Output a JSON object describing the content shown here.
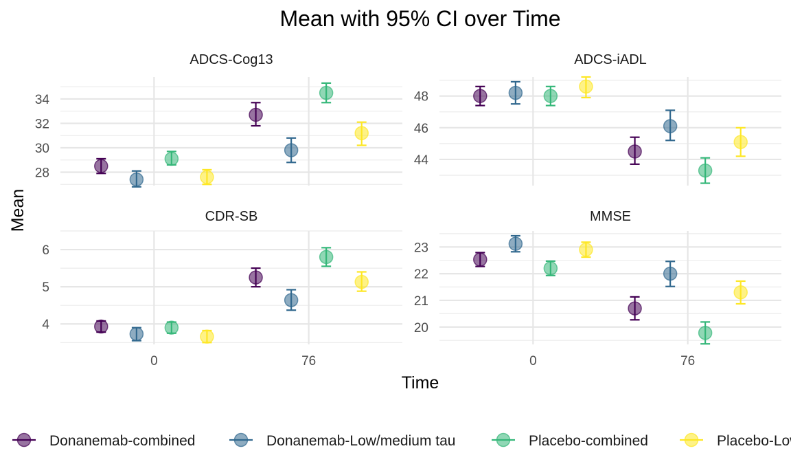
{
  "chart_data": {
    "type": "scatter",
    "title": "Mean with 95% CI over Time",
    "xlabel": "Time",
    "ylabel": "Mean",
    "x_ticks": [
      "0",
      "76"
    ],
    "x_tick_values": [
      0,
      76
    ],
    "xlim": [
      -46,
      122
    ],
    "legend_position": "bottom",
    "series": [
      {
        "name": "Donanemab-combined",
        "color": "#440154"
      },
      {
        "name": "Donanemab-Low/medium tau",
        "color": "#31688E"
      },
      {
        "name": "Placebo-combined",
        "color": "#35B779"
      },
      {
        "name": "Placebo-Low/medium tau",
        "color": "#FDE725"
      }
    ],
    "panels": [
      {
        "name": "ADCS-Cog13",
        "ylim": [
          26.9,
          35.8
        ],
        "y_ticks": [
          28,
          30,
          32,
          34
        ],
        "points": [
          {
            "series": 0,
            "x": -26,
            "y": 28.5,
            "lo": 27.9,
            "hi": 29.1
          },
          {
            "series": 1,
            "x": -8.6,
            "y": 27.4,
            "lo": 26.8,
            "hi": 28.1
          },
          {
            "series": 2,
            "x": 8.6,
            "y": 29.1,
            "lo": 28.6,
            "hi": 29.7
          },
          {
            "series": 3,
            "x": 26,
            "y": 27.6,
            "lo": 27.0,
            "hi": 28.2
          },
          {
            "series": 0,
            "x": 50,
            "y": 32.7,
            "lo": 31.8,
            "hi": 33.7
          },
          {
            "series": 1,
            "x": 67.4,
            "y": 29.8,
            "lo": 28.8,
            "hi": 30.8
          },
          {
            "series": 2,
            "x": 84.6,
            "y": 34.5,
            "lo": 33.7,
            "hi": 35.3
          },
          {
            "series": 3,
            "x": 102,
            "y": 31.2,
            "lo": 30.2,
            "hi": 32.1
          }
        ]
      },
      {
        "name": "ADCS-iADL",
        "ylim": [
          42.35,
          49.2
        ],
        "y_ticks": [
          44,
          46,
          48
        ],
        "points": [
          {
            "series": 0,
            "x": -26,
            "y": 48.0,
            "lo": 47.4,
            "hi": 48.6
          },
          {
            "series": 1,
            "x": -8.6,
            "y": 48.2,
            "lo": 47.5,
            "hi": 48.9
          },
          {
            "series": 2,
            "x": 8.6,
            "y": 48.0,
            "lo": 47.4,
            "hi": 48.6
          },
          {
            "series": 3,
            "x": 26,
            "y": 48.6,
            "lo": 47.9,
            "hi": 49.2
          },
          {
            "series": 0,
            "x": 50,
            "y": 44.5,
            "lo": 43.7,
            "hi": 45.4
          },
          {
            "series": 1,
            "x": 67.4,
            "y": 46.1,
            "lo": 45.2,
            "hi": 47.1
          },
          {
            "series": 2,
            "x": 84.6,
            "y": 43.3,
            "lo": 42.5,
            "hi": 44.1
          },
          {
            "series": 3,
            "x": 102,
            "y": 45.1,
            "lo": 44.2,
            "hi": 46.0
          }
        ]
      },
      {
        "name": "CDR-SB",
        "ylim": [
          3.45,
          6.5
        ],
        "y_ticks": [
          4,
          5,
          6
        ],
        "points": [
          {
            "series": 0,
            "x": -26,
            "y": 3.93,
            "lo": 3.78,
            "hi": 4.08
          },
          {
            "series": 1,
            "x": -8.6,
            "y": 3.73,
            "lo": 3.55,
            "hi": 3.9
          },
          {
            "series": 2,
            "x": 8.6,
            "y": 3.9,
            "lo": 3.75,
            "hi": 4.05
          },
          {
            "series": 3,
            "x": 26,
            "y": 3.66,
            "lo": 3.5,
            "hi": 3.82
          },
          {
            "series": 0,
            "x": 50,
            "y": 5.25,
            "lo": 5.0,
            "hi": 5.5
          },
          {
            "series": 1,
            "x": 67.4,
            "y": 4.64,
            "lo": 4.37,
            "hi": 4.92
          },
          {
            "series": 2,
            "x": 84.6,
            "y": 5.8,
            "lo": 5.55,
            "hi": 6.05
          },
          {
            "series": 3,
            "x": 102,
            "y": 5.13,
            "lo": 4.88,
            "hi": 5.4
          }
        ]
      },
      {
        "name": "MMSE",
        "ylim": [
          19.35,
          23.6
        ],
        "y_ticks": [
          20,
          21,
          22,
          23
        ],
        "points": [
          {
            "series": 0,
            "x": -26,
            "y": 22.53,
            "lo": 22.27,
            "hi": 22.79
          },
          {
            "series": 1,
            "x": -8.6,
            "y": 23.12,
            "lo": 22.82,
            "hi": 23.42
          },
          {
            "series": 2,
            "x": 8.6,
            "y": 22.2,
            "lo": 21.93,
            "hi": 22.47
          },
          {
            "series": 3,
            "x": 26,
            "y": 22.9,
            "lo": 22.62,
            "hi": 23.18
          },
          {
            "series": 0,
            "x": 50,
            "y": 20.7,
            "lo": 20.27,
            "hi": 21.13
          },
          {
            "series": 1,
            "x": 67.4,
            "y": 22.0,
            "lo": 21.52,
            "hi": 22.46
          },
          {
            "series": 2,
            "x": 84.6,
            "y": 19.78,
            "lo": 19.37,
            "hi": 20.19
          },
          {
            "series": 3,
            "x": 102,
            "y": 21.3,
            "lo": 20.87,
            "hi": 21.72
          }
        ]
      }
    ]
  }
}
